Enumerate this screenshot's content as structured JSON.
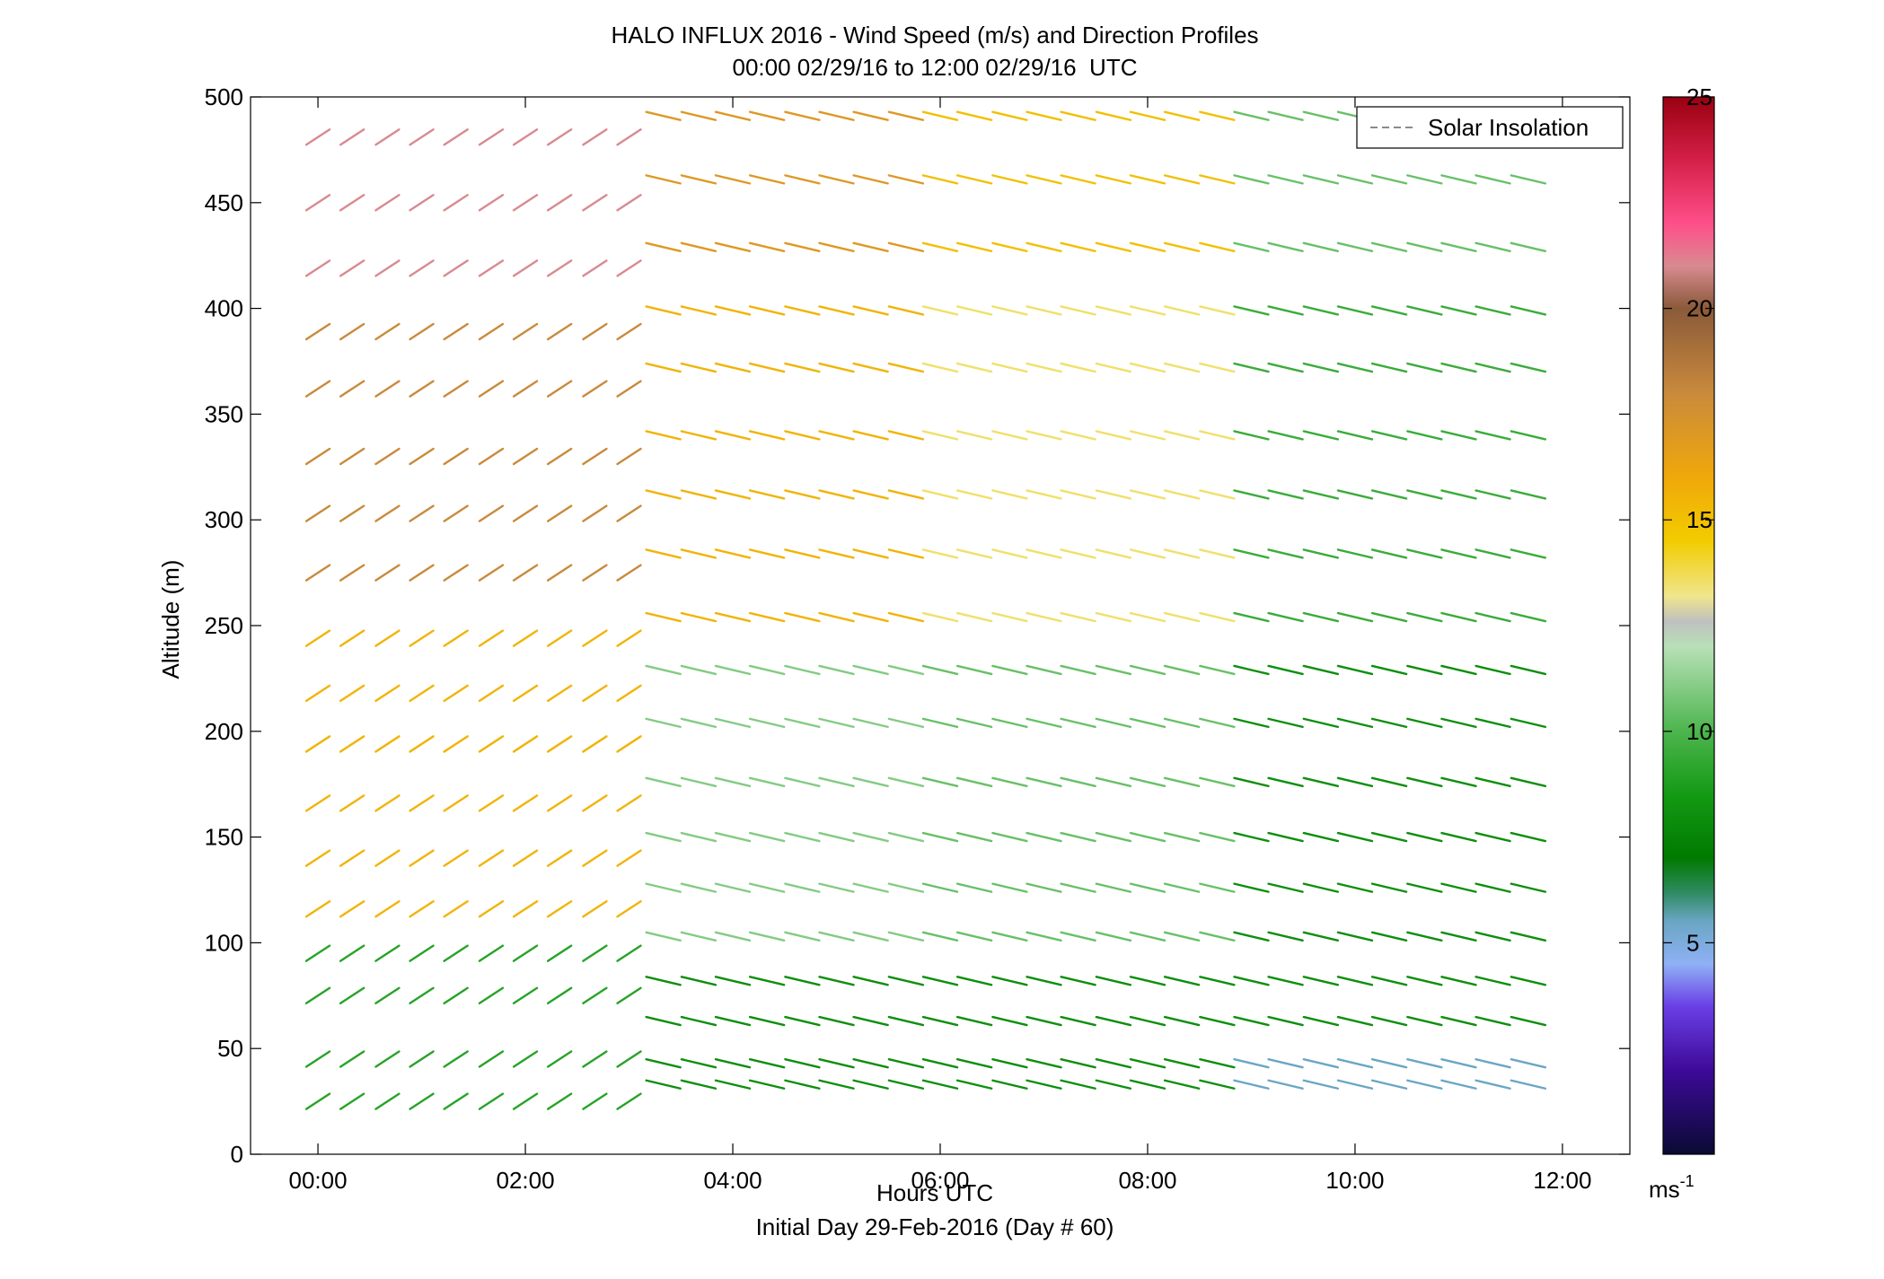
{
  "chart_data": {
    "type": "wind-barb-profile",
    "title": "HALO INFLUX 2016 - Wind Speed (m/s) and Direction Profiles",
    "subtitle": "00:00 02/29/16 to 12:00 02/29/16  UTC",
    "xlabel": "Hours UTC",
    "xlabel_secondary": "Initial Day 29-Feb-2016 (Day # 60)",
    "ylabel": "Altitude (m)",
    "xlim_hours": [
      -0.65,
      12.65
    ],
    "ylim": [
      0,
      500
    ],
    "x_ticks": [
      {
        "value": 0,
        "label": "00:00"
      },
      {
        "value": 2,
        "label": "02:00"
      },
      {
        "value": 4,
        "label": "04:00"
      },
      {
        "value": 6,
        "label": "06:00"
      },
      {
        "value": 8,
        "label": "08:00"
      },
      {
        "value": 10,
        "label": "10:00"
      },
      {
        "value": 12,
        "label": "12:00"
      }
    ],
    "y_ticks": [
      0,
      50,
      100,
      150,
      200,
      250,
      300,
      350,
      400,
      450,
      500
    ],
    "legend": {
      "entries": [
        "Solar Insolation"
      ],
      "style": "dashed gray line",
      "placement": "top-right"
    },
    "colorbar": {
      "label": "ms",
      "label_superscript": "-1",
      "range": [
        0,
        25
      ],
      "ticks": [
        5,
        10,
        15,
        20,
        25
      ],
      "stops": [
        {
          "v": 0,
          "c": "#0a0a33"
        },
        {
          "v": 2,
          "c": "#3d0a99"
        },
        {
          "v": 3.5,
          "c": "#6a3fe6"
        },
        {
          "v": 4.5,
          "c": "#8fb1f5"
        },
        {
          "v": 5.5,
          "c": "#6aa6c4"
        },
        {
          "v": 6.2,
          "c": "#2f8a60"
        },
        {
          "v": 7,
          "c": "#007a00"
        },
        {
          "v": 8.5,
          "c": "#149a14"
        },
        {
          "v": 10,
          "c": "#4db54d"
        },
        {
          "v": 12,
          "c": "#b8e0b8"
        },
        {
          "v": 12.6,
          "c": "#c0c0c0"
        },
        {
          "v": 13.2,
          "c": "#f0e68c"
        },
        {
          "v": 14.5,
          "c": "#f2cc00"
        },
        {
          "v": 16,
          "c": "#f0a80a"
        },
        {
          "v": 18,
          "c": "#c98a3c"
        },
        {
          "v": 20,
          "c": "#8a5a3a"
        },
        {
          "v": 21,
          "c": "#d88a90"
        },
        {
          "v": 22,
          "c": "#ff4f8a"
        },
        {
          "v": 23.5,
          "c": "#d42048"
        },
        {
          "v": 25,
          "c": "#9a0010"
        }
      ]
    },
    "altitudes_a": [
      25,
      45,
      75,
      95,
      116,
      140,
      166,
      194,
      218,
      244,
      275,
      303,
      330,
      362,
      389,
      419,
      450,
      481
    ],
    "altitudes_b": [
      33,
      43,
      63,
      82,
      103,
      126,
      150,
      176,
      204,
      229,
      254,
      284,
      312,
      340,
      372,
      399,
      429,
      461,
      491
    ],
    "profile_times_a": [
      0,
      0.33,
      0.67,
      1.0,
      1.33,
      1.67,
      2.0,
      2.33,
      2.67,
      3.0
    ],
    "profile_times_b": [
      3.33,
      3.67,
      4.0,
      4.33,
      4.67,
      5.0,
      5.33,
      5.67,
      6.0,
      6.33,
      6.67,
      7.0,
      7.33,
      7.67,
      8.0,
      8.33,
      8.67,
      9.0,
      9.33,
      9.67,
      10.0,
      10.33,
      10.67,
      11.0,
      11.33,
      11.67
    ],
    "wind_direction_deg": {
      "0000-0300": "from southwest (arrows pointing up-right)",
      "0320-1140": "from west-northwest (arrows pointing right, slightly down)"
    },
    "wind_speed_ms_by_time_altitude": {
      "0000-0300": {
        "below_100m": 9,
        "100-250m": 15.5,
        "250-400m": 18,
        "above_400m": 21
      },
      "0320-0600": {
        "below_100m": 8,
        "100-250m": 11,
        "250-400m": 15.5,
        "above_400m": 17
      },
      "0600-0900": {
        "below_100m": 8,
        "100-250m": 10.5,
        "250-400m": 13.5,
        "above_400m": 15
      },
      "0900-1140": {
        "below_60m": 5.5,
        "60-250m": 8,
        "250-400m": 9.5,
        "above_400m": 10.5
      }
    }
  }
}
